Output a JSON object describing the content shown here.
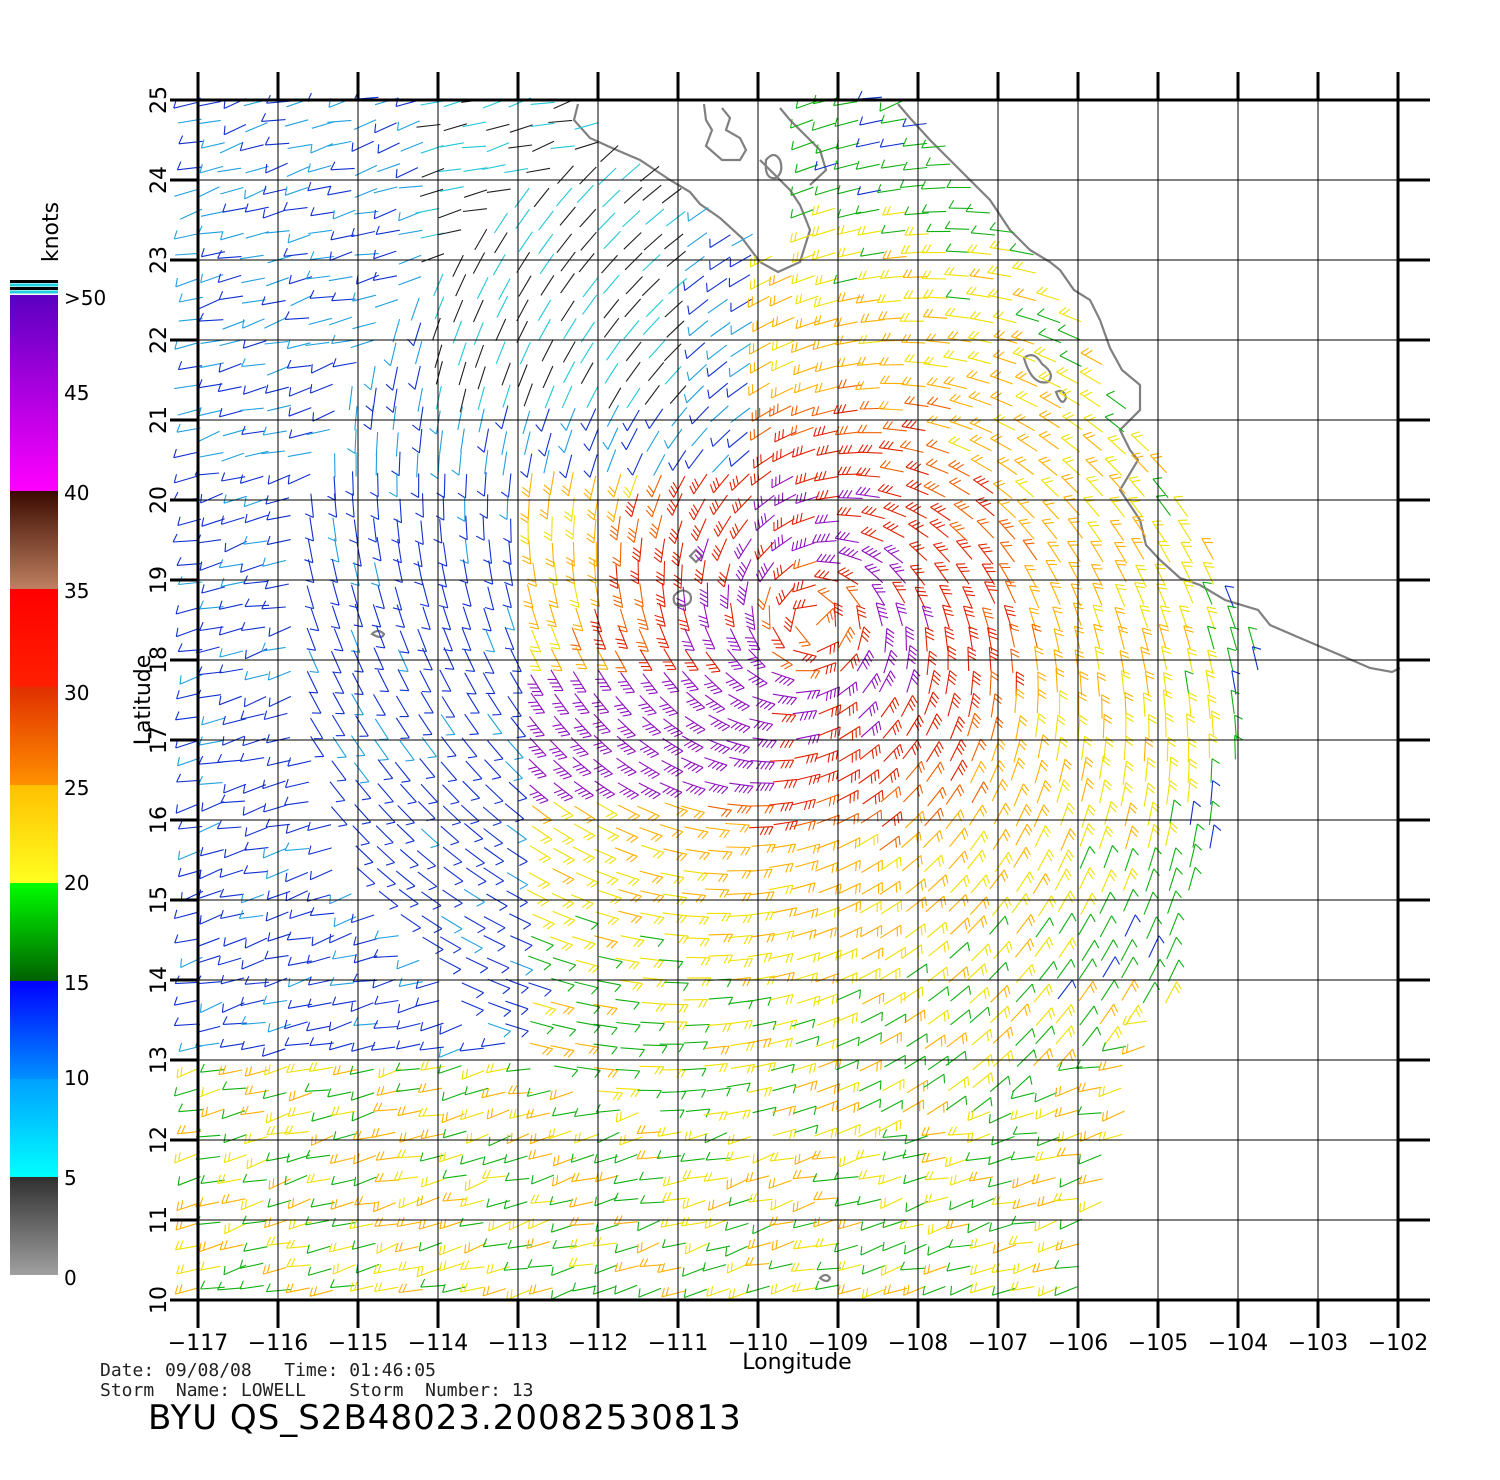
{
  "axes": {
    "x_label": "Longitude",
    "y_label": "Latitude",
    "x_ticks": [
      "−117",
      "−116",
      "−115",
      "−114",
      "−113",
      "−112",
      "−111",
      "−110",
      "−109",
      "−108",
      "−107",
      "−106",
      "−105",
      "−104",
      "−103",
      "−102"
    ],
    "y_ticks": [
      "10",
      "11",
      "12",
      "13",
      "14",
      "15",
      "16",
      "17",
      "18",
      "19",
      "20",
      "21",
      "22",
      "23",
      "24",
      "25"
    ],
    "lon_range": [
      -117,
      -102
    ],
    "lat_range": [
      10,
      25
    ]
  },
  "legend": {
    "unit": "knots",
    "labels": [
      ">50",
      "45",
      "40",
      "35",
      "30",
      "25",
      "20",
      "15",
      "10",
      "5",
      "0"
    ],
    "bands": [
      {
        "from": 50,
        "to": 40,
        "top": "#5a00c0",
        "bottom": "#ff00ff"
      },
      {
        "from": 40,
        "to": 35,
        "top": "#3a0a00",
        "bottom": "#c08060"
      },
      {
        "from": 35,
        "to": 30,
        "top": "#ff0000",
        "bottom": "#ff2000"
      },
      {
        "from": 30,
        "to": 25,
        "top": "#e03000",
        "bottom": "#ff9000"
      },
      {
        "from": 25,
        "to": 20,
        "top": "#ffc000",
        "bottom": "#ffff20"
      },
      {
        "from": 20,
        "to": 15,
        "top": "#00ff00",
        "bottom": "#006000"
      },
      {
        "from": 15,
        "to": 10,
        "top": "#0000ff",
        "bottom": "#0090ff"
      },
      {
        "from": 10,
        "to": 5,
        "top": "#00a0ff",
        "bottom": "#00ffff"
      },
      {
        "from": 5,
        "to": 0,
        "top": "#303030",
        "bottom": "#a0a0a0"
      }
    ]
  },
  "info": {
    "date_line": "Date: 09/08/08   Time: 01:46:05",
    "storm_line": "Storm  Name: LOWELL    Storm  Number: 13",
    "product": "BYU  QS_S2B48023.20082530813"
  },
  "storm_center": {
    "lon": -109.3,
    "lat": 18.5
  },
  "colors": {
    "coast": "#808080",
    "grid": "#000000"
  }
}
